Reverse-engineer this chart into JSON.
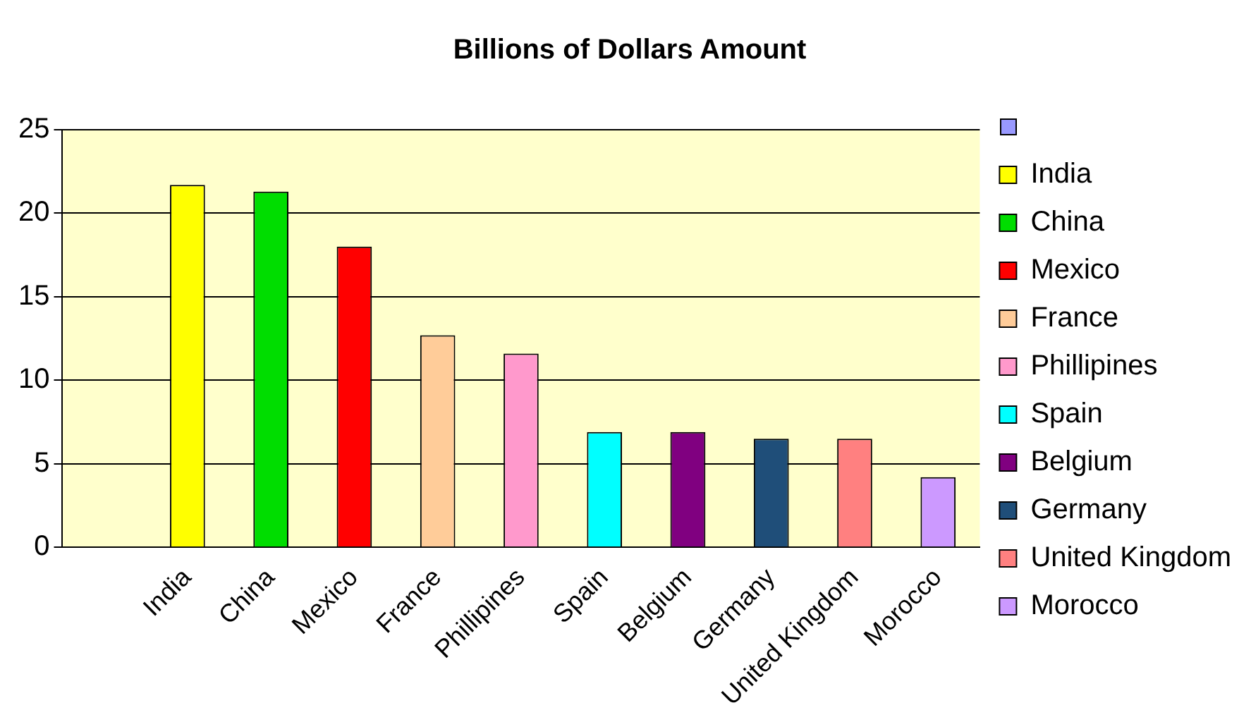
{
  "chart_data": {
    "type": "bar",
    "title": "Billions of Dollars Amount",
    "stacked": true,
    "grid": "y",
    "legend": "right",
    "ylim": [
      0,
      25
    ],
    "yticks": [
      0,
      5,
      10,
      15,
      20,
      25
    ],
    "categories": [
      null,
      "India",
      "China",
      "Mexico",
      "France",
      "Phillipines",
      "Spain",
      "Belgium",
      "Germany",
      "United Kingdom",
      "Morocco"
    ],
    "series": [
      {
        "name": "India",
        "color": "#ffff00",
        "values": [
          null,
          21.7,
          null,
          null,
          null,
          null,
          null,
          null,
          null,
          null,
          null
        ]
      },
      {
        "name": "China",
        "color": "#00dd00",
        "values": [
          null,
          null,
          21.3,
          null,
          null,
          null,
          null,
          null,
          null,
          null,
          null
        ]
      },
      {
        "name": "Mexico",
        "color": "#ff0000",
        "values": [
          null,
          null,
          null,
          18,
          null,
          null,
          null,
          null,
          null,
          null,
          null
        ]
      },
      {
        "name": "France",
        "color": "#ffcc99",
        "values": [
          null,
          null,
          null,
          null,
          12.7,
          null,
          null,
          null,
          null,
          null,
          null
        ]
      },
      {
        "name": "Phillipines",
        "color": "#ff99cc",
        "values": [
          null,
          null,
          null,
          null,
          null,
          11.6,
          null,
          null,
          null,
          null,
          null
        ]
      },
      {
        "name": "Spain",
        "color": "#00ffff",
        "values": [
          null,
          null,
          null,
          null,
          null,
          null,
          6.9,
          null,
          null,
          null,
          null
        ]
      },
      {
        "name": "Belgium",
        "color": "#800080",
        "values": [
          null,
          null,
          null,
          null,
          null,
          null,
          null,
          6.9,
          null,
          null,
          null
        ]
      },
      {
        "name": "Germany",
        "color": "#1f4e79",
        "values": [
          null,
          null,
          null,
          null,
          null,
          null,
          null,
          null,
          6.5,
          null,
          null
        ]
      },
      {
        "name": "United Kingdom",
        "color": "#ff8080",
        "values": [
          null,
          null,
          null,
          null,
          null,
          null,
          null,
          null,
          null,
          6.5,
          null
        ]
      },
      {
        "name": "Morocco",
        "color": "#cc99ff",
        "values": [
          null,
          null,
          null,
          null,
          null,
          null,
          null,
          null,
          null,
          null,
          4.2
        ]
      }
    ]
  }
}
